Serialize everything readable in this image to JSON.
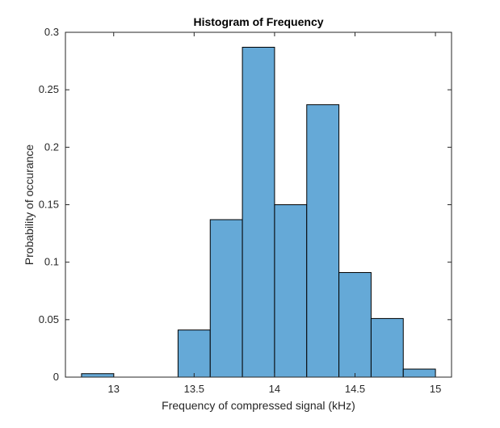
{
  "chart_data": {
    "type": "bar",
    "title": "Histogram of Frequency",
    "xlabel": "Frequency of compressed signal (kHz)",
    "ylabel": "Probability of occurance",
    "xlim": [
      12.7,
      15.1
    ],
    "ylim": [
      0,
      0.3
    ],
    "grid": false,
    "legend": "none",
    "bin_edges": [
      12.8,
      13.0,
      13.2,
      13.4,
      13.6,
      13.8,
      14.0,
      14.2,
      14.4,
      14.6,
      14.8,
      15.0
    ],
    "values": [
      0.003,
      0,
      0,
      0.041,
      0.137,
      0.287,
      0.15,
      0.237,
      0.091,
      0.051,
      0.007
    ],
    "x_ticks": [
      13,
      13.5,
      14,
      14.5,
      15
    ],
    "x_tick_labels": [
      "13",
      "13.5",
      "14",
      "14.5",
      "15"
    ],
    "y_ticks": [
      0,
      0.05,
      0.1,
      0.15,
      0.2,
      0.25,
      0.3
    ],
    "y_tick_labels": [
      "0",
      "0.05",
      "0.1",
      "0.15",
      "0.2",
      "0.25",
      "0.3"
    ],
    "colors": {
      "bar_fill": "#65a9d7",
      "bar_edge": "#000000",
      "axes": "#262626",
      "background": "#ffffff"
    }
  }
}
